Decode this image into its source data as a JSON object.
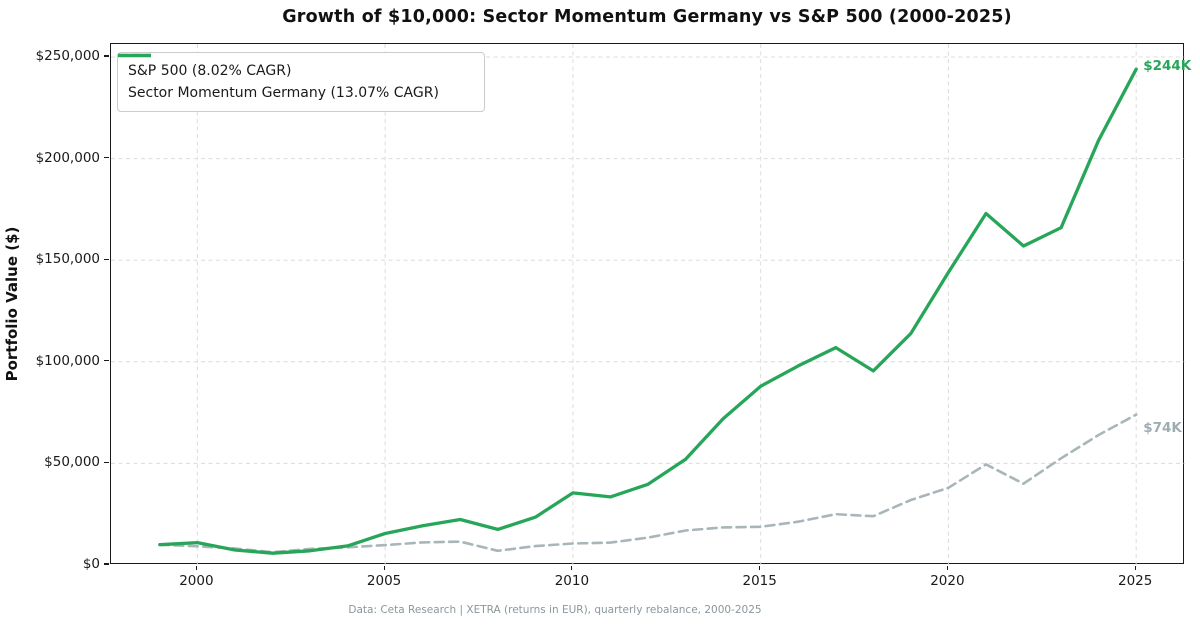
{
  "title": "Growth of $10,000: Sector Momentum Germany vs S&P 500 (2000-2025)",
  "footer": "Data: Ceta Research | XETRA (returns in EUR), quarterly rebalance, 2000-2025",
  "colors": {
    "sp500_line": "#a9b6b9",
    "momentum_line": "#27a558",
    "sp500_label": "#9fadb0",
    "momentum_label": "#27a558",
    "grid": "#dcdcdc",
    "spine": "#1a1a1a",
    "footer_text": "#8a979b"
  },
  "chart_data": {
    "type": "line",
    "title": "Growth of $10,000: Sector Momentum Germany vs S&P 500 (2000-2025)",
    "xlabel": "",
    "ylabel": "Portfolio Value ($)",
    "x": [
      1999,
      2000,
      2001,
      2002,
      2003,
      2004,
      2005,
      2006,
      2007,
      2008,
      2009,
      2010,
      2011,
      2012,
      2013,
      2014,
      2015,
      2016,
      2017,
      2018,
      2019,
      2020,
      2021,
      2022,
      2023,
      2024,
      2025
    ],
    "series": [
      {
        "name": "S&P 500 (8.02% CAGR)",
        "color": "#a9b6b9",
        "line_style": "dashed",
        "end_label": "$74K",
        "end_label_color": "#9fadb0",
        "end_label_dy": 14,
        "values": [
          10000,
          9200,
          8100,
          6300,
          7900,
          8700,
          9800,
          11100,
          11500,
          7000,
          9300,
          10600,
          11000,
          13500,
          17000,
          18500,
          18800,
          21300,
          25000,
          24000,
          32000,
          38000,
          49500,
          40000,
          52500,
          64000,
          74000
        ]
      },
      {
        "name": "Sector Momentum Germany (13.07% CAGR)",
        "color": "#27a558",
        "line_style": "solid",
        "end_label": "$244K",
        "end_label_color": "#27a558",
        "end_label_dy": -2,
        "values": [
          10000,
          11000,
          7400,
          5800,
          7000,
          9400,
          15500,
          19300,
          22400,
          17500,
          23500,
          35500,
          33500,
          39700,
          52000,
          72000,
          88000,
          98000,
          107000,
          95500,
          114000,
          144000,
          173000,
          157000,
          166000,
          209000,
          244000
        ]
      }
    ],
    "xticks": {
      "values": [
        2000,
        2005,
        2010,
        2015,
        2020,
        2025
      ],
      "labels": [
        "2000",
        "2005",
        "2010",
        "2015",
        "2020",
        "2025"
      ]
    },
    "yticks": {
      "values": [
        0,
        50000,
        100000,
        150000,
        200000,
        250000
      ],
      "labels": [
        "$0",
        "$50,000",
        "$100,000",
        "$150,000",
        "$200,000",
        "$250,000"
      ]
    },
    "xlim": [
      1997.7,
      2026.3
    ],
    "ylim": [
      0,
      256400
    ],
    "grid": true,
    "legend_position": "upper-left"
  }
}
